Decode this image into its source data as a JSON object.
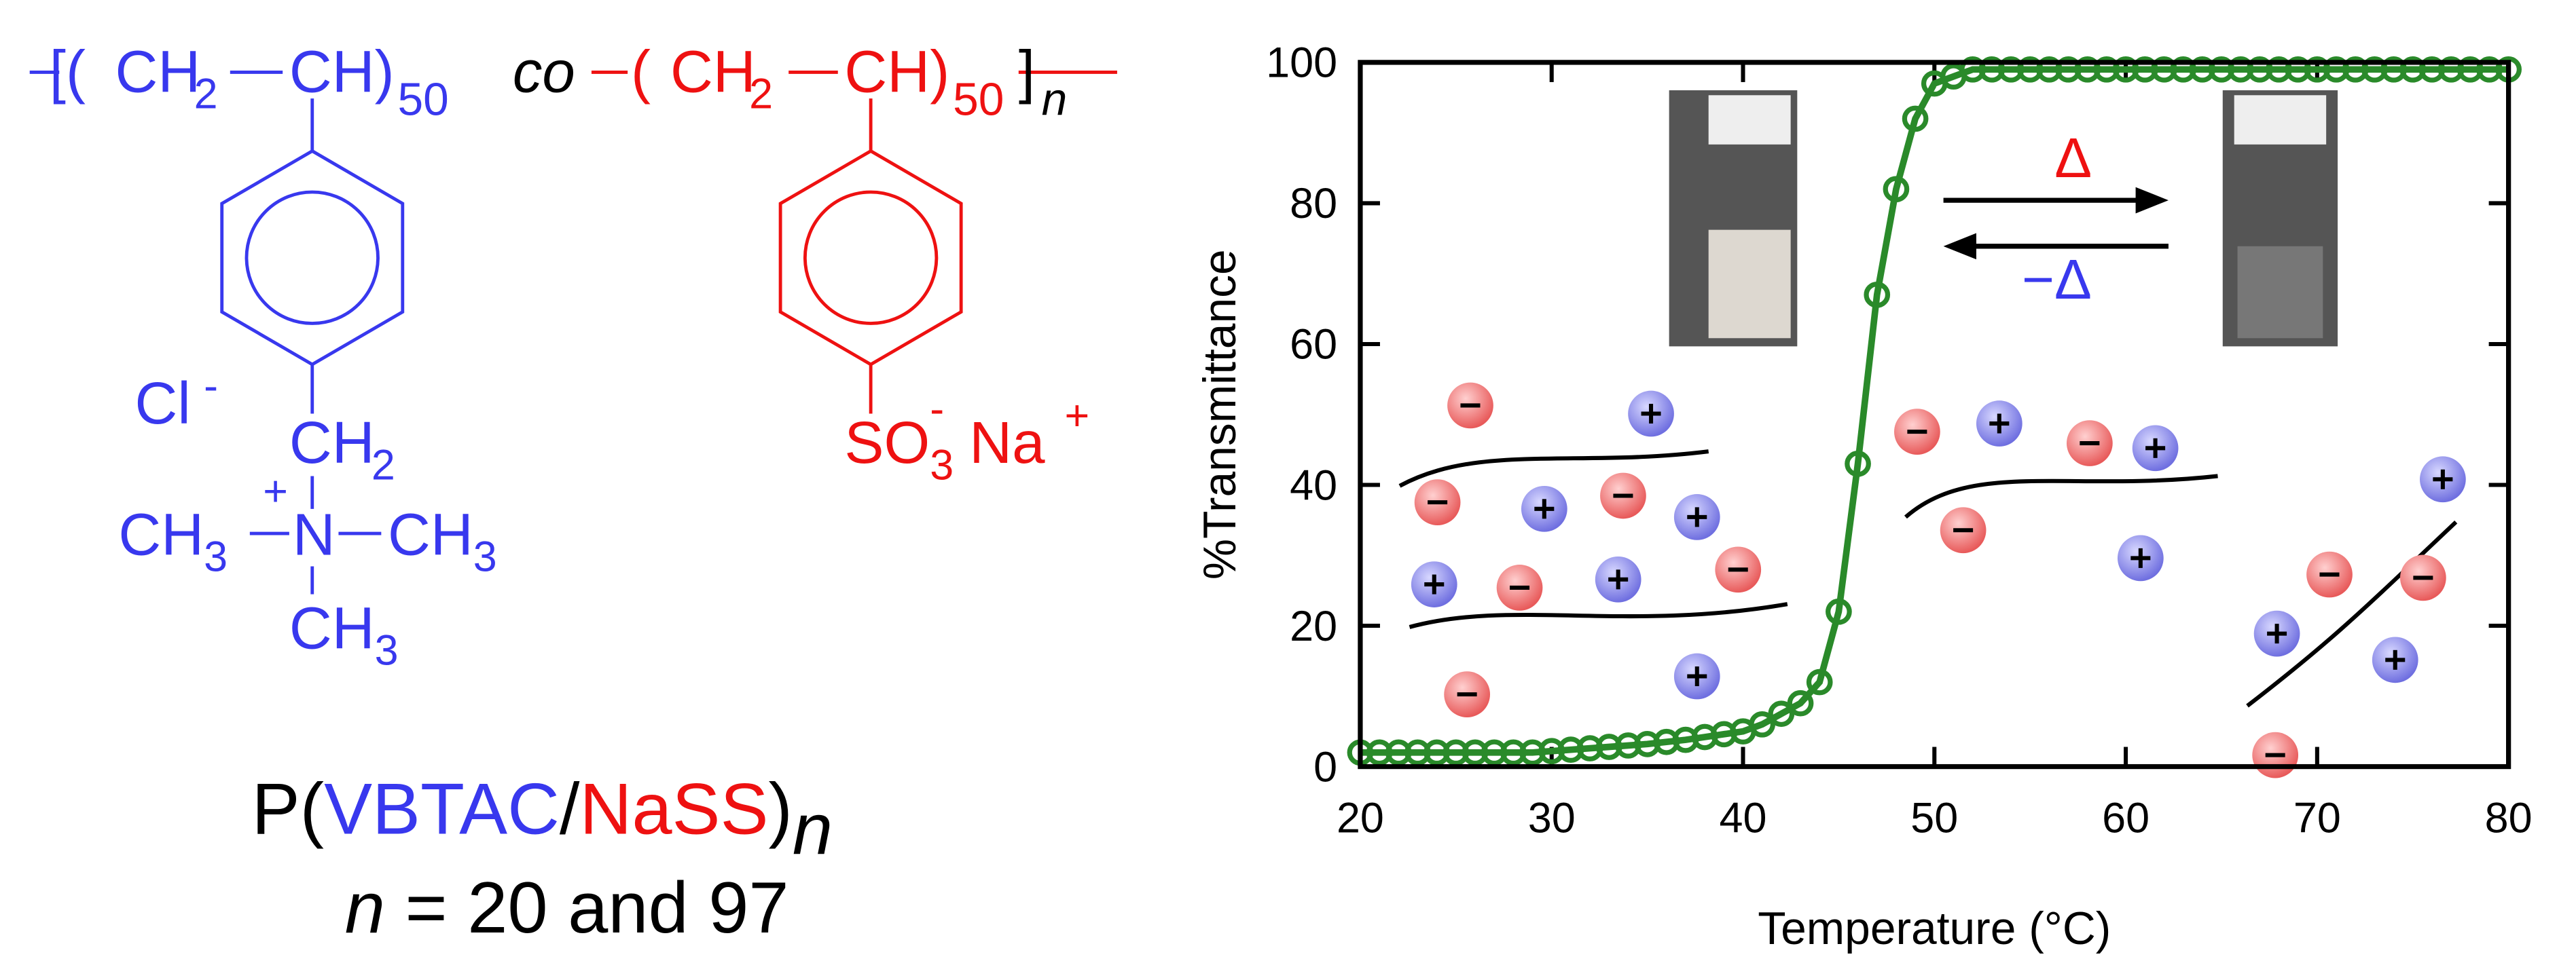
{
  "structure": {
    "backbone": [
      "[(",
      "CH",
      "2",
      "CH",
      ")",
      "50",
      "co",
      "(",
      "CH",
      "2",
      "CH",
      ")",
      "50",
      "]",
      "n"
    ],
    "cation": [
      "Cl",
      "-",
      "CH",
      "2",
      "+",
      "N",
      "CH",
      "3",
      "CH",
      "3",
      "CH",
      "3"
    ],
    "anion": [
      "SO",
      "3",
      "-",
      "Na",
      "+"
    ],
    "name": [
      "P(",
      "VBTAC",
      "/",
      "NaSS",
      ")",
      "n"
    ],
    "degree": [
      "n",
      " = 20 and 97"
    ]
  },
  "chart_data": {
    "type": "line",
    "xlabel": "Temperature (°C)",
    "ylabel": "%Transmittance",
    "annotations": [
      "Δ",
      "−Δ"
    ],
    "x": [
      20,
      21,
      22,
      23,
      24,
      25,
      26,
      27,
      28,
      29,
      30,
      31,
      32,
      33,
      34,
      35,
      36,
      37,
      38,
      39,
      40,
      41,
      42,
      43,
      44,
      45,
      46,
      47,
      48,
      49,
      50,
      51,
      52,
      53,
      54,
      55,
      56,
      57,
      58,
      59,
      60,
      61,
      62,
      63,
      64,
      65,
      66,
      67,
      68,
      69,
      70,
      71,
      72,
      73,
      74,
      75,
      76,
      77,
      78,
      79,
      80
    ],
    "series": [
      {
        "color": "#2a8a2a",
        "values": [
          2,
          2,
          2,
          2,
          2,
          2,
          2,
          2,
          2,
          2,
          2.2,
          2.4,
          2.6,
          2.8,
          3,
          3.2,
          3.5,
          3.8,
          4.2,
          4.6,
          5,
          6,
          7.5,
          9,
          12,
          22,
          43,
          67,
          82,
          92,
          97,
          98,
          99,
          99,
          99,
          99,
          99,
          99,
          99,
          99,
          99,
          99,
          99,
          99,
          99,
          99,
          99,
          99,
          99,
          99,
          99,
          99,
          99,
          99,
          99,
          99,
          99,
          99,
          99,
          99,
          99
        ]
      }
    ],
    "xlim": [
      20,
      80
    ],
    "ylim": [
      0,
      100
    ],
    "xticks": [
      20,
      30,
      40,
      50,
      60,
      70,
      80
    ],
    "yticks": [
      0,
      20,
      40,
      60,
      80,
      100
    ]
  }
}
